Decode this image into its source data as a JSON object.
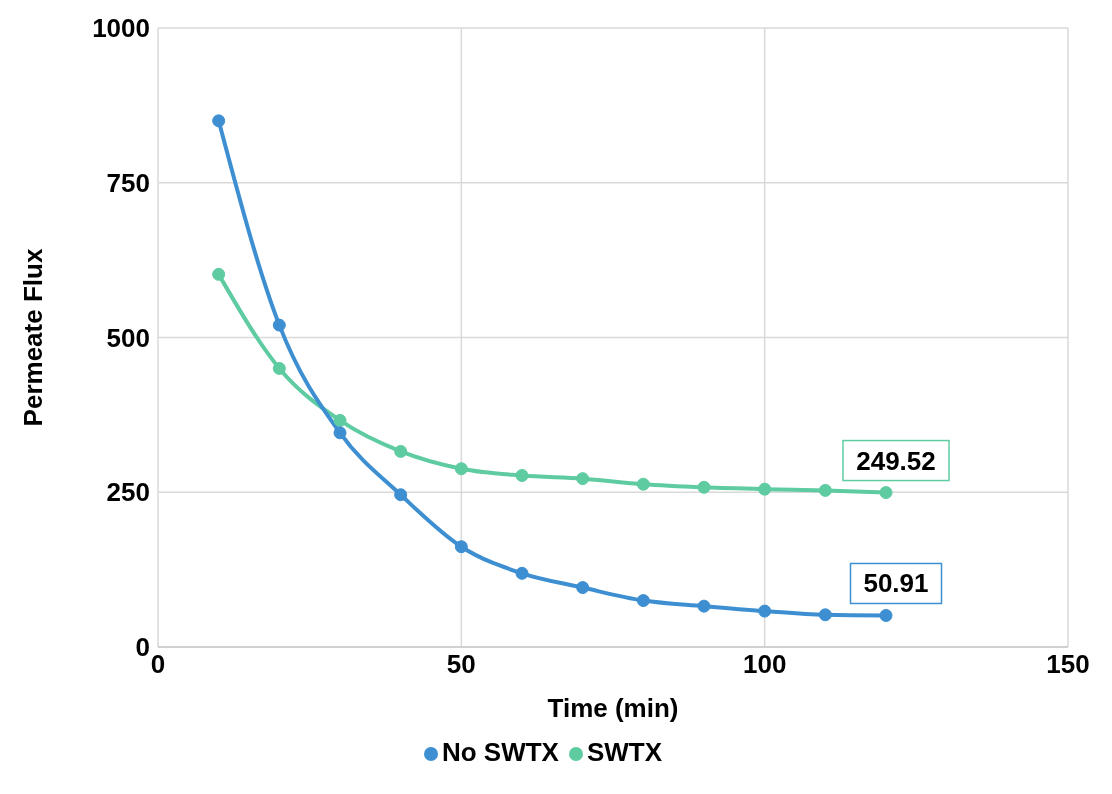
{
  "chart_data": {
    "type": "line",
    "xlabel": "Time (min)",
    "ylabel": "Permeate Flux",
    "x": [
      10,
      20,
      30,
      40,
      50,
      60,
      70,
      80,
      90,
      100,
      110,
      120
    ],
    "series": [
      {
        "name": "SWTX",
        "color": "#5ecba1",
        "values": [
          602,
          450,
          366,
          316,
          288,
          277,
          272,
          263,
          258,
          255,
          253,
          249.52
        ],
        "value_labels": [
          null,
          null,
          null,
          null,
          null,
          null,
          null,
          null,
          null,
          null,
          null,
          "249.52"
        ]
      },
      {
        "name": "No SWTX",
        "color": "#3d8fd1",
        "values": [
          850,
          520,
          346,
          246,
          162,
          119,
          96,
          75,
          66,
          58,
          52,
          50.91
        ],
        "value_labels": [
          null,
          null,
          null,
          null,
          null,
          null,
          null,
          null,
          null,
          null,
          null,
          "50.91"
        ]
      }
    ],
    "xlim": [
      0,
      150
    ],
    "xticks": [
      0,
      50,
      100,
      150
    ],
    "ylim": [
      0,
      1000
    ],
    "yticks": [
      0,
      250,
      500,
      750,
      1000
    ],
    "grid": true,
    "legend": "bottom",
    "marker": "circle",
    "line_style": "solid"
  }
}
